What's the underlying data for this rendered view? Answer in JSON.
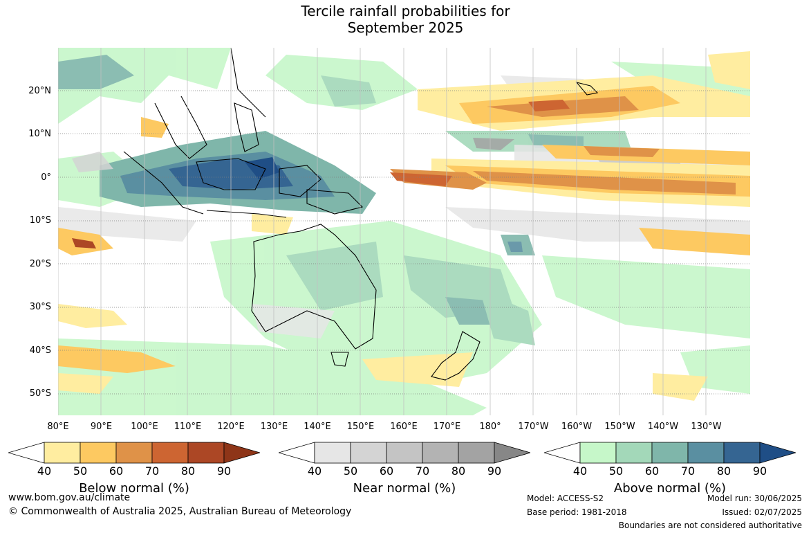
{
  "title_line1": "Tercile rainfall probabilities for",
  "title_line2": "September 2025",
  "lat_labels": [
    "20°N",
    "10°N",
    "0°",
    "10°S",
    "20°S",
    "30°S",
    "40°S",
    "50°S"
  ],
  "lon_labels": [
    "80°E",
    "90°E",
    "100°E",
    "110°E",
    "120°E",
    "130°E",
    "140°E",
    "150°E",
    "160°E",
    "170°E",
    "180°",
    "170°W",
    "160°W",
    "150°W",
    "140°W",
    "130°W"
  ],
  "colorbars": [
    {
      "title": "Below normal (%)",
      "ticks": [
        "40",
        "50",
        "60",
        "70",
        "80",
        "90"
      ],
      "colors": [
        "#ffeda0",
        "#fdc961",
        "#df9248",
        "#cd6532",
        "#ac4725",
        "#8e3518"
      ]
    },
    {
      "title": "Near normal (%)",
      "ticks": [
        "40",
        "50",
        "60",
        "70",
        "80",
        "90"
      ],
      "colors": [
        "#e6e6e6",
        "#d4d4d4",
        "#c4c4c4",
        "#b3b3b3",
        "#a3a3a3",
        "#878787"
      ]
    },
    {
      "title": "Above normal (%)",
      "ticks": [
        "40",
        "50",
        "60",
        "70",
        "80",
        "90"
      ],
      "colors": [
        "#c6f7c9",
        "#a3d8b9",
        "#7fb6aa",
        "#5a8fa1",
        "#356592",
        "#1f4e86"
      ]
    }
  ],
  "footer": {
    "website": "www.bom.gov.au/climate",
    "copyright": "© Commonwealth of Australia 2025, Australian Bureau of Meteorology",
    "model": "Model: ACCESS-S2",
    "base_period": "Base period: 1981-2018",
    "model_run": "Model run: 30/06/2025",
    "issued": "Issued: 02/07/2025",
    "disclaimer": "Boundaries are not considered authoritative"
  }
}
